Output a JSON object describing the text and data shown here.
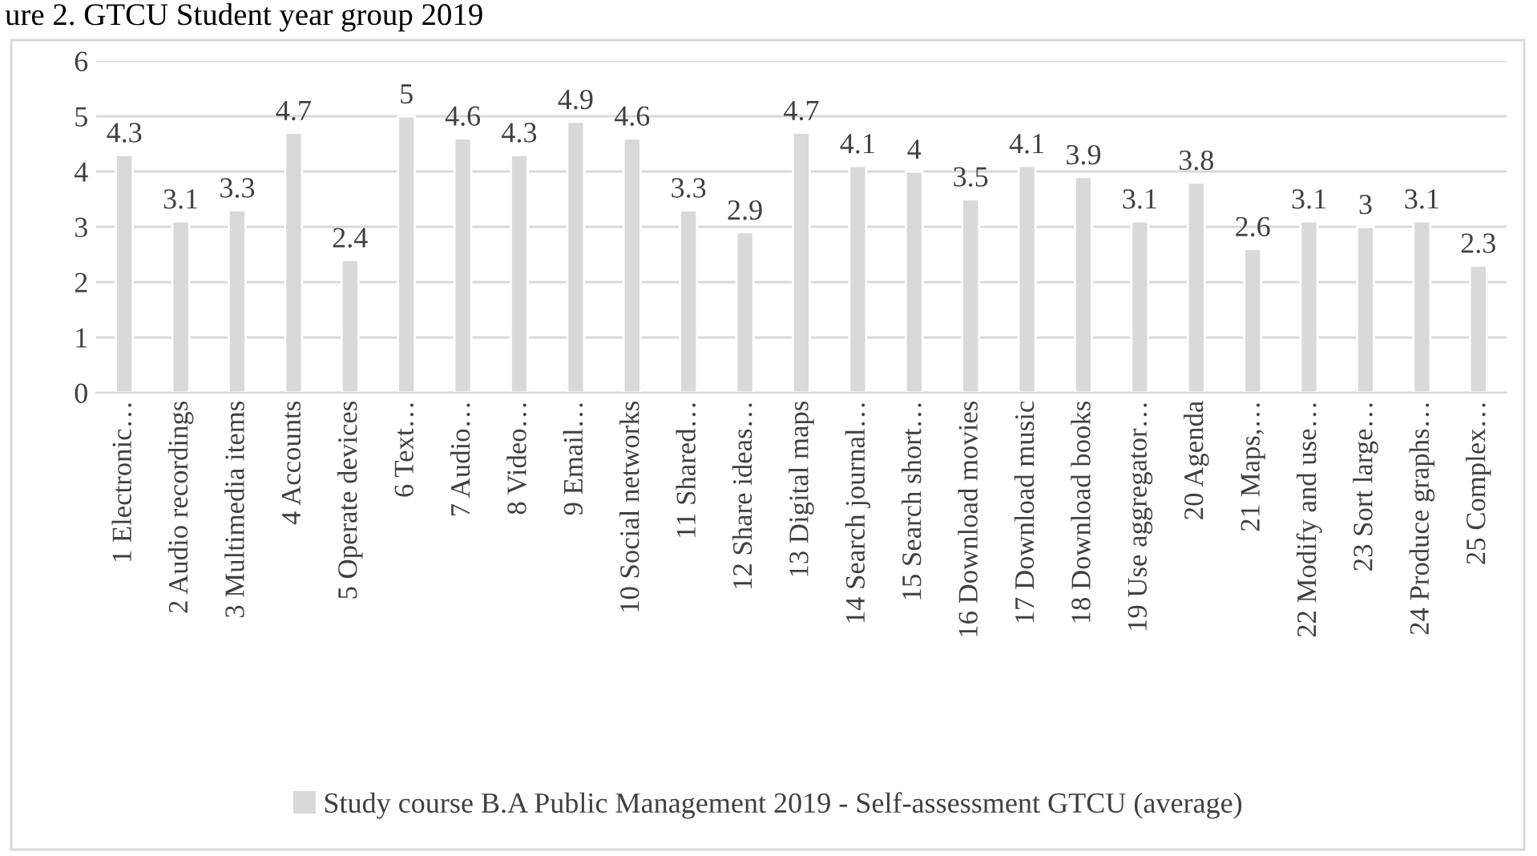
{
  "chart_data": {
    "type": "bar",
    "title": "ure 2. GTCU Student year group 2019",
    "categories": [
      "1 Electronic…",
      "2 Audio recordings",
      "3 Multimedia items",
      "4 Accounts",
      "5 Operate devices",
      "6 Text…",
      "7 Audio…",
      "8 Video…",
      "9 Email…",
      "10 Social networks",
      "11 Shared…",
      "12 Share ideas…",
      "13 Digital maps",
      "14 Search journal…",
      "15 Search short…",
      "16 Download movies",
      "17 Download music",
      "18 Download books",
      "19 Use aggregator…",
      "20 Agenda",
      "21 Maps,…",
      "22 Modify and use…",
      "23 Sort large…",
      "24 Produce graphs…",
      "25 Complex…"
    ],
    "series": [
      {
        "name": "Study course B.A Public Management 2019 - Self-assessment GTCU (average)",
        "color": "#d9d9d9",
        "values": [
          4.3,
          3.1,
          3.3,
          4.7,
          2.4,
          5,
          4.6,
          4.3,
          4.9,
          4.6,
          3.3,
          2.9,
          4.7,
          4.1,
          4,
          3.5,
          4.1,
          3.9,
          3.1,
          3.8,
          2.6,
          3.1,
          3,
          3.1,
          2.3
        ]
      }
    ],
    "ylim": [
      0,
      6
    ],
    "yticks": [
      0,
      1,
      2,
      3,
      4,
      5,
      6
    ],
    "grid": "y",
    "legend": "bottom",
    "data_labels": true
  }
}
